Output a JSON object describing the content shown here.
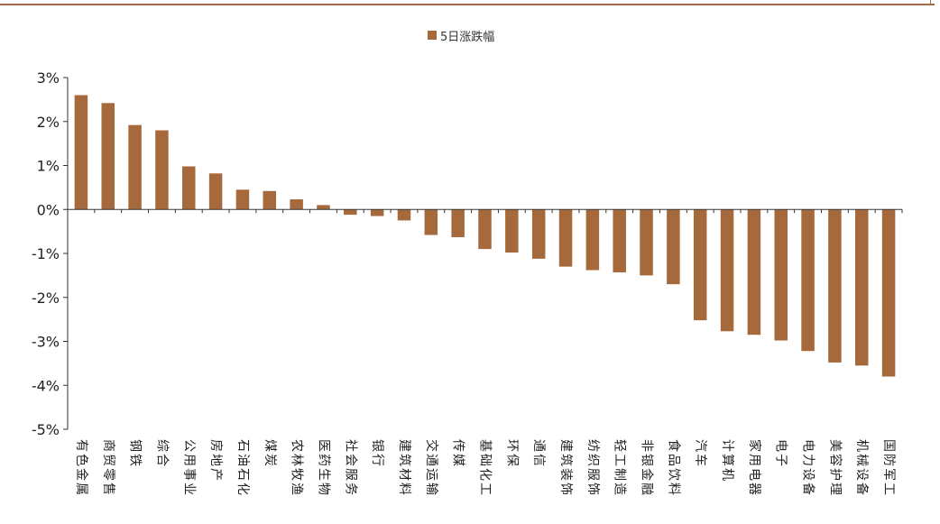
{
  "chart_data": {
    "type": "bar",
    "title": "",
    "xlabel": "",
    "ylabel": "",
    "ylim": [
      -5,
      3
    ],
    "yticks": [
      3,
      2,
      1,
      0,
      -1,
      -2,
      -3,
      -4,
      -5
    ],
    "ytick_labels": [
      "3%",
      "2%",
      "1%",
      "0%",
      "-1%",
      "-2%",
      "-3%",
      "-4%",
      "-5%"
    ],
    "grid": false,
    "legend_position": "top-center",
    "bar_color": "#a5693c",
    "categories": [
      "有色金属",
      "商贸零售",
      "钢铁",
      "综合",
      "公用事业",
      "房地产",
      "石油石化",
      "煤炭",
      "农林牧渔",
      "医药生物",
      "社会服务",
      "银行",
      "建筑材料",
      "交通运输",
      "传媒",
      "基础化工",
      "环保",
      "通信",
      "建筑装饰",
      "纺织服饰",
      "轻工制造",
      "非银金融",
      "食品饮料",
      "汽车",
      "计算机",
      "家用电器",
      "电子",
      "电力设备",
      "美容护理",
      "机械设备",
      "国防军工"
    ],
    "series": [
      {
        "name": "5日涨跌幅",
        "values": [
          2.6,
          2.42,
          1.92,
          1.8,
          0.98,
          0.82,
          0.45,
          0.42,
          0.23,
          0.1,
          -0.12,
          -0.15,
          -0.25,
          -0.58,
          -0.63,
          -0.9,
          -0.98,
          -1.12,
          -1.3,
          -1.38,
          -1.43,
          -1.5,
          -1.7,
          -2.52,
          -2.77,
          -2.85,
          -2.98,
          -3.22,
          -3.48,
          -3.55,
          -3.8
        ]
      }
    ]
  }
}
